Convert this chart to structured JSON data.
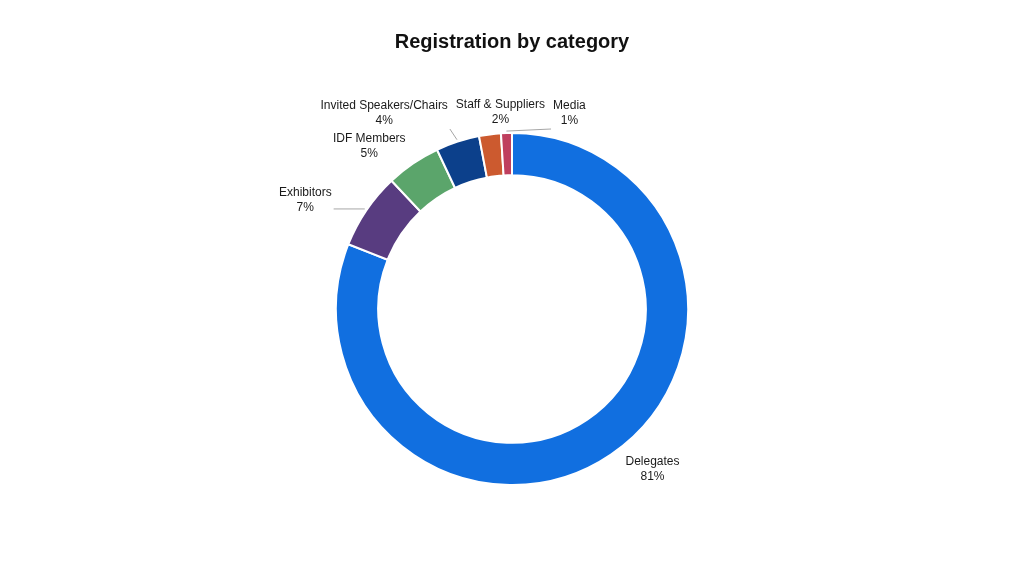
{
  "chart_data": {
    "type": "donut",
    "title": "Registration by category",
    "categories": [
      "Delegates",
      "Exhibitors",
      "IDF Members",
      "Invited Speakers/Chairs",
      "Staff & Suppliers",
      "Media"
    ],
    "values": [
      81,
      7,
      5,
      4,
      2,
      1
    ],
    "value_labels": [
      "81%",
      "7%",
      "5%",
      "4%",
      "2%",
      "1%"
    ],
    "colors": [
      "#116fe0",
      "#583c80",
      "#5ba56b",
      "#0c408b",
      "#cc5a2f",
      "#bf3f5e"
    ]
  }
}
